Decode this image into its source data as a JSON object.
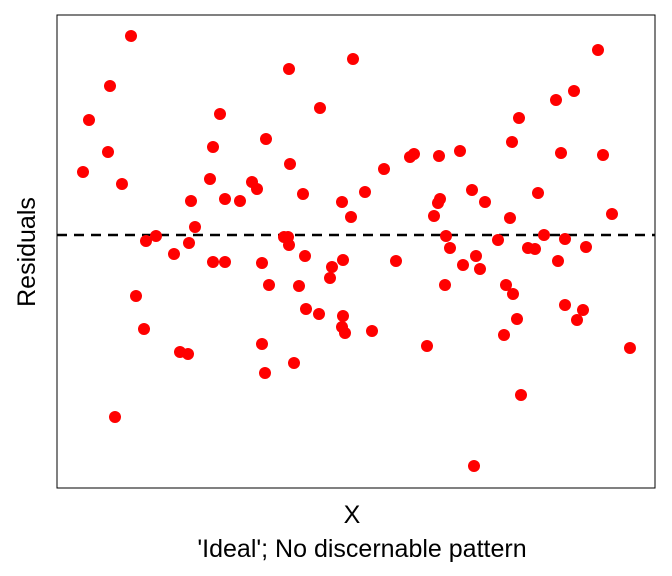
{
  "chart_data": {
    "type": "scatter",
    "x_label": "X",
    "y_label": "Residuals",
    "caption": "'Ideal'; No discernable pattern",
    "color": "red",
    "hline": 0,
    "xlim": [
      0,
      598
    ],
    "ylim": [
      -253,
      220
    ],
    "x": [
      26,
      32,
      53,
      74,
      51,
      65,
      58,
      79,
      87,
      89,
      99,
      117,
      123,
      131,
      132,
      134,
      138,
      153,
      156,
      163,
      156,
      168,
      168,
      183,
      195,
      200,
      209,
      205,
      205,
      208,
      212,
      232,
      233,
      227,
      232,
      231,
      237,
      242,
      246,
      248,
      249,
      262,
      263,
      273,
      275,
      286,
      285,
      294,
      286,
      285,
      288,
      296,
      308,
      315,
      327,
      339,
      353,
      357,
      370,
      377,
      381,
      383,
      382,
      389,
      393,
      388,
      403,
      406,
      415,
      417,
      419,
      423,
      428,
      441,
      447,
      449,
      453,
      455,
      456,
      460,
      462,
      464,
      471,
      478,
      481,
      487,
      499,
      501,
      504,
      508,
      508,
      517,
      520,
      526,
      529,
      541,
      546,
      555,
      573
    ],
    "values": [
      63,
      115,
      149,
      199,
      83,
      51,
      -182,
      -61,
      -94,
      -6,
      -1,
      -19,
      -117,
      -119,
      -8,
      34,
      8,
      56,
      88,
      121,
      -27,
      -27,
      36,
      34,
      53,
      46,
      96,
      -28,
      -109,
      -138,
      -50,
      166,
      71,
      -2,
      -10,
      -2,
      -128,
      -51,
      41,
      -21,
      -74,
      -79,
      127,
      -43,
      -32,
      -25,
      33,
      18,
      -81,
      -92,
      -98,
      176,
      43,
      -96,
      66,
      -26,
      78,
      81,
      -111,
      19,
      32,
      36,
      79,
      -1,
      -13,
      -50,
      84,
      -30,
      45,
      -231,
      -21,
      -34,
      33,
      -5,
      -100,
      -50,
      17,
      93,
      -59,
      -84,
      117,
      -160,
      -13,
      -14,
      42,
      0,
      135,
      -26,
      82,
      -70,
      -4,
      144,
      -85,
      -75,
      -12,
      185,
      80,
      21,
      -113
    ]
  }
}
